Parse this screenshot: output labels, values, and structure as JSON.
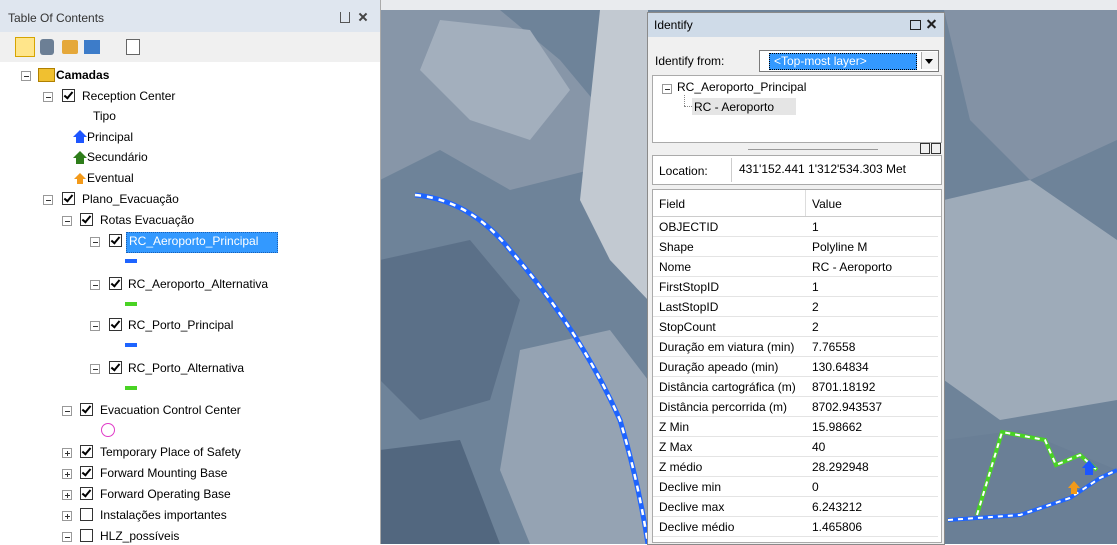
{
  "toc": {
    "title": "Table Of Contents",
    "items": [
      "Camadas",
      "Reception Center",
      "Tipo",
      "Principal",
      "Secundário",
      "Eventual",
      "Plano_Evacuação",
      "Rotas Evacuação",
      "RC_Aeroporto_Principal",
      "RC_Aeroporto_Alternativa",
      "RC_Porto_Principal",
      "RC_Porto_Alternativa",
      "Evacuation Control Center",
      "Temporary Place of Safety",
      "Forward Mounting Base",
      "Forward Operating Base",
      "Instalações importantes",
      "HLZ_possíveis"
    ]
  },
  "identify": {
    "title": "Identify",
    "from_label": "Identify from:",
    "from_value": "<Top-most layer>",
    "tree": [
      "RC_Aeroporto_Principal",
      "RC - Aeroporto"
    ],
    "location_label": "Location:",
    "location_value": "431'152.441  1'312'534.303 Met",
    "columns": [
      "Field",
      "Value"
    ],
    "rows": [
      [
        "OBJECTID",
        "1"
      ],
      [
        "Shape",
        "Polyline M"
      ],
      [
        "Nome",
        "RC - Aeroporto"
      ],
      [
        "FirstStopID",
        "1"
      ],
      [
        "LastStopID",
        "2"
      ],
      [
        "StopCount",
        "2"
      ],
      [
        "Duração em viatura (min)",
        "7.76558"
      ],
      [
        "Duração apeado (min)",
        "130.64834"
      ],
      [
        "Distância cartográfica (m)",
        "8701.18192"
      ],
      [
        "Distância percorrida (m)",
        "8702.943537"
      ],
      [
        "Z Min",
        "15.98662"
      ],
      [
        "Z Max",
        "40"
      ],
      [
        "Z médio",
        "28.292948"
      ],
      [
        "Declive min",
        "0"
      ],
      [
        "Declive max",
        "6.243212"
      ],
      [
        "Declive médio",
        "1.465806"
      ]
    ]
  }
}
